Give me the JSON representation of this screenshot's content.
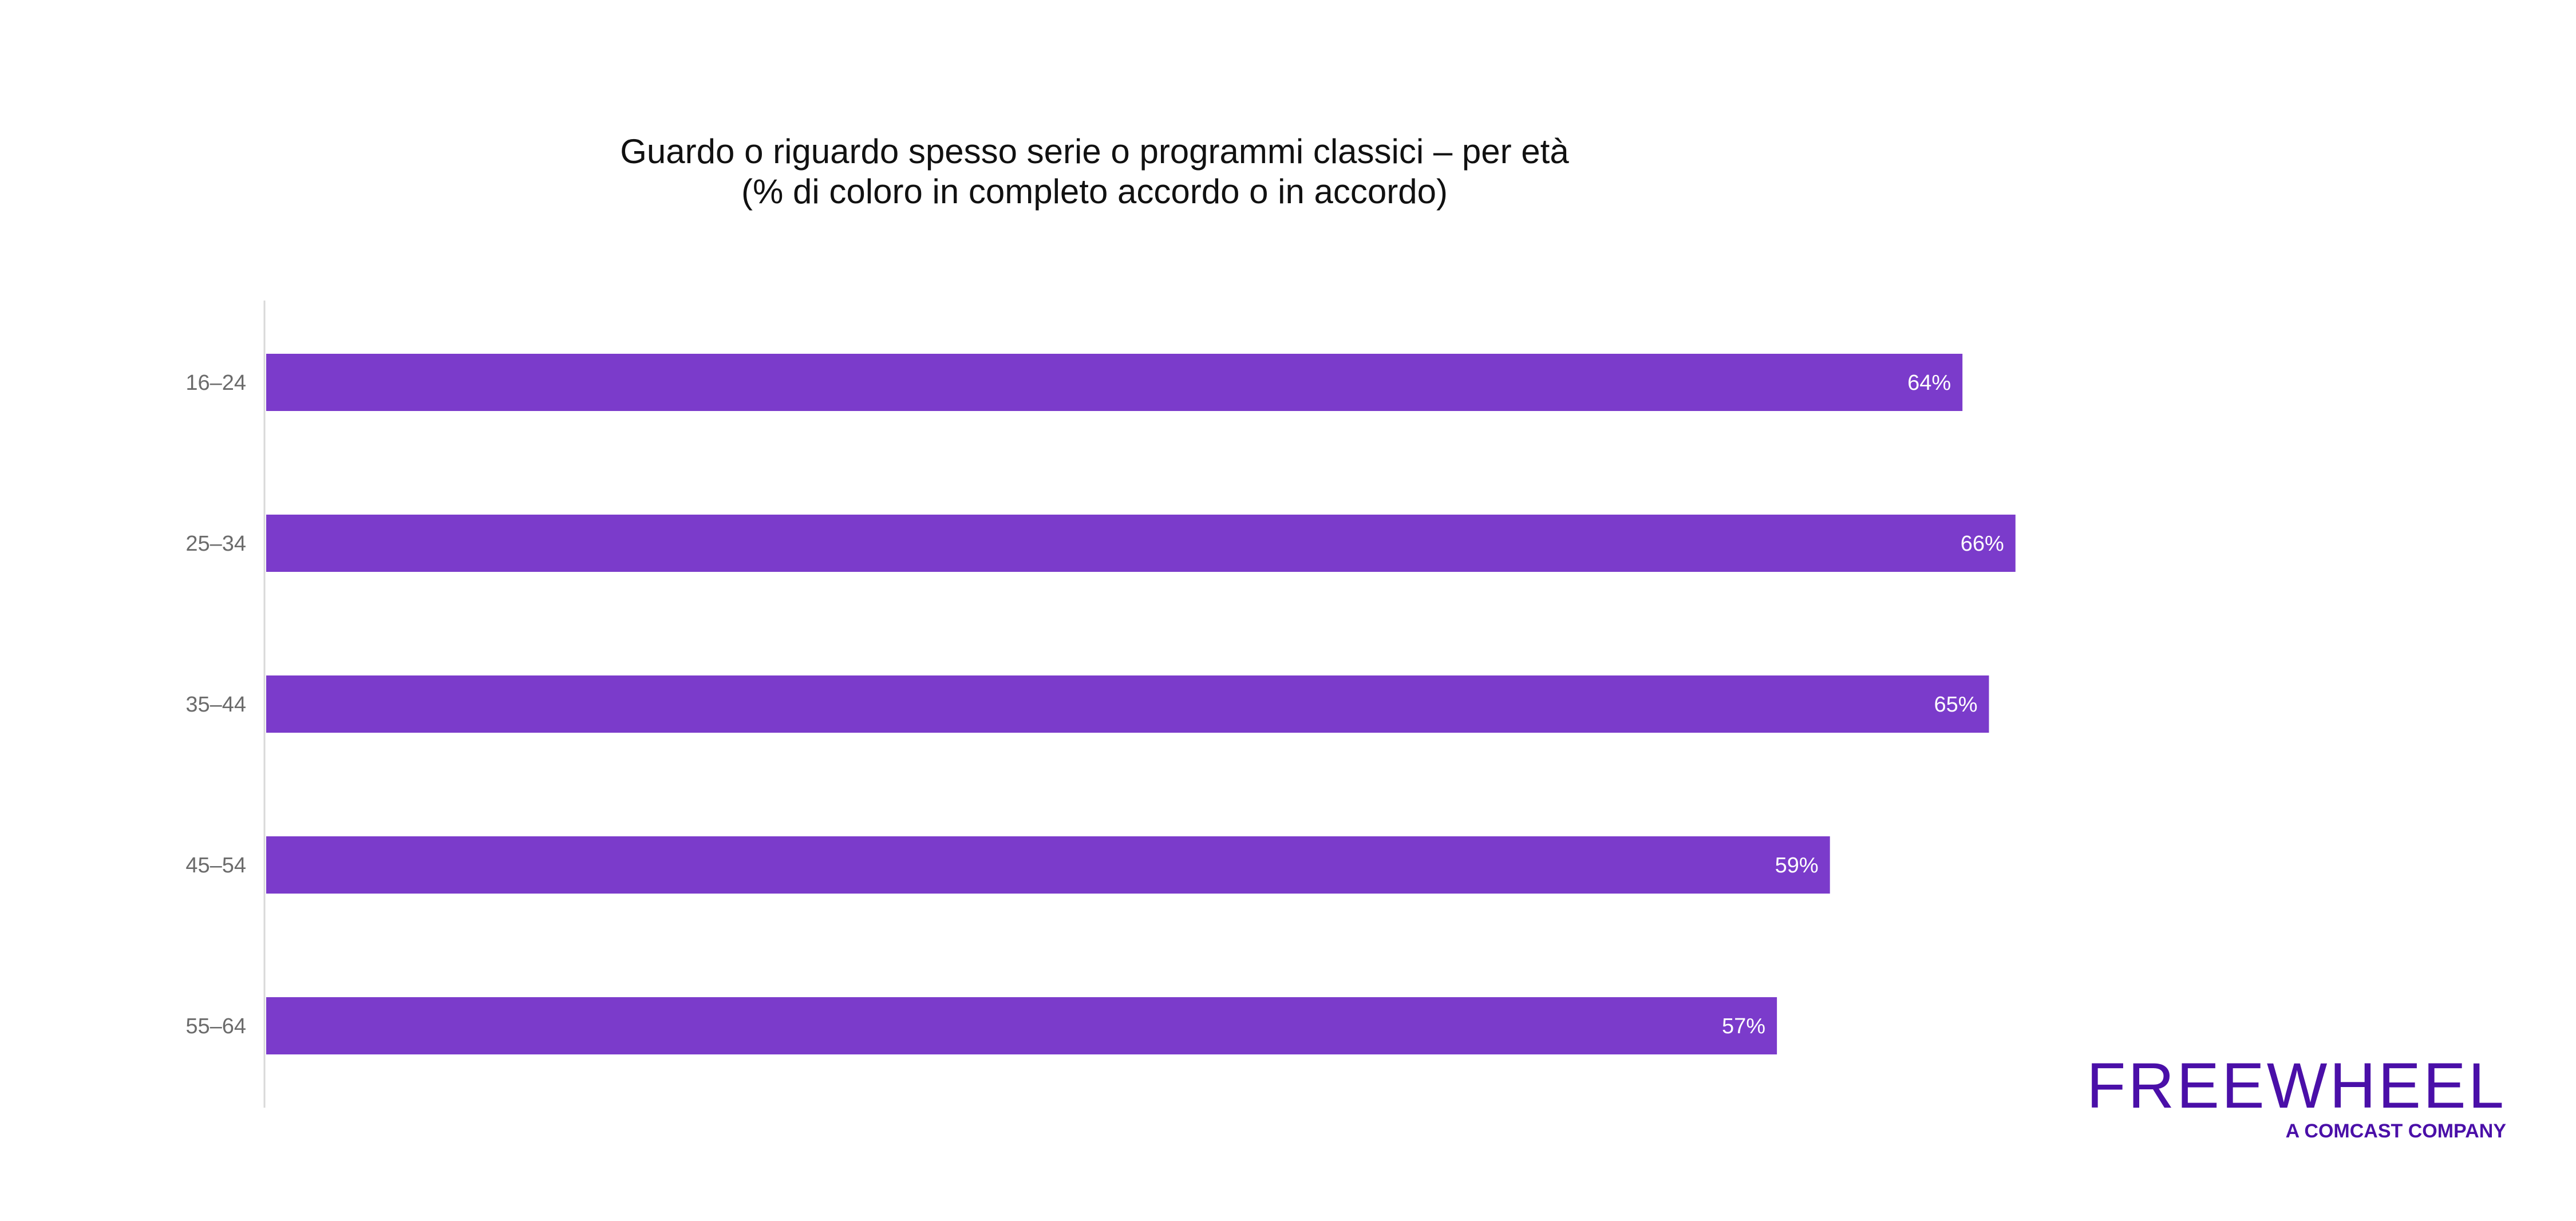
{
  "chart_data": {
    "type": "bar",
    "orientation": "horizontal",
    "title": "Guardo o riguardo spesso serie o programmi classici – per età",
    "subtitle": "(% di coloro in completo accordo o in accordo)",
    "xlabel": "",
    "ylabel": "",
    "categories": [
      "16–24",
      "25–34",
      "35–44",
      "45–54",
      "55–64"
    ],
    "values": [
      64,
      66,
      65,
      59,
      57
    ],
    "data_labels": [
      "64%",
      "66%",
      "65%",
      "59%",
      "57%"
    ],
    "value_unit": "%",
    "xlim": [
      0,
      100
    ],
    "grid": false,
    "legend": "none",
    "bar_color": "#7b3bcb",
    "value_label_color": "#ffffff"
  },
  "logo": {
    "name": "FREEWHEEL",
    "tagline": "A COMCAST COMPANY",
    "color": "#4a0fa8"
  }
}
